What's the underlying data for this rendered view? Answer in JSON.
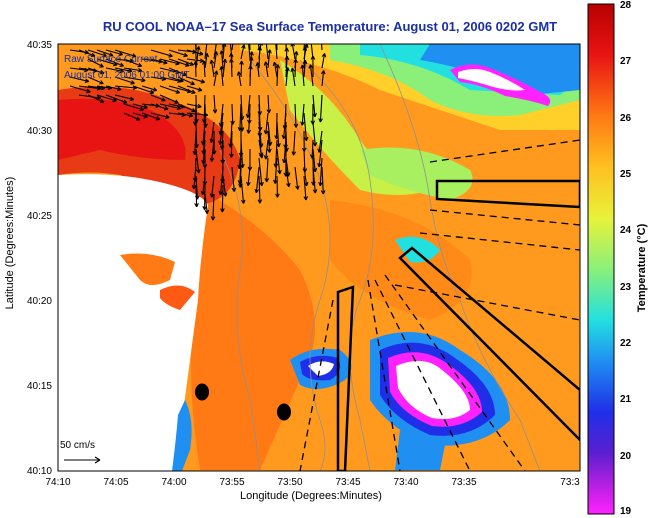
{
  "title": "RU COOL  NOAA–17  Sea Surface Temperature:  August 01, 2006 0202 GMT",
  "overlay": {
    "line1": "Raw Surface Current",
    "line2": "August 01, 2006 01:00 GMT",
    "scale_label": "50 cm/s"
  },
  "axes": {
    "ylabel": "Latitude (Degrees:Minutes)",
    "xlabel": "Longitude (Degrees:Minutes)",
    "yticks": [
      "40:35",
      "40:30",
      "40:25",
      "40:20",
      "40:15",
      "40:10"
    ],
    "xticks": [
      "74:10",
      "74:05",
      "74:00",
      "73:55",
      "73:50",
      "73:45",
      "73:40",
      "73:35",
      "73:3"
    ]
  },
  "colorbar": {
    "label": "Temperature (°C)",
    "ticks": [
      "28",
      "27",
      "26",
      "25",
      "24",
      "23",
      "22",
      "21",
      "20",
      "19"
    ],
    "range": [
      19,
      28
    ],
    "colors": [
      "#ff22ff",
      "#7a1fd6",
      "#1f2fe8",
      "#1f8ff2",
      "#23e0e0",
      "#8af07a",
      "#e8f23a",
      "#ffb21e",
      "#ff5a14",
      "#e81414",
      "#b80000"
    ]
  },
  "map": {
    "ocean_base": "#ff9a1e",
    "land": "#ffffff",
    "cloud": "#ffffff",
    "vector_color": "#000000",
    "markers": 2
  }
}
